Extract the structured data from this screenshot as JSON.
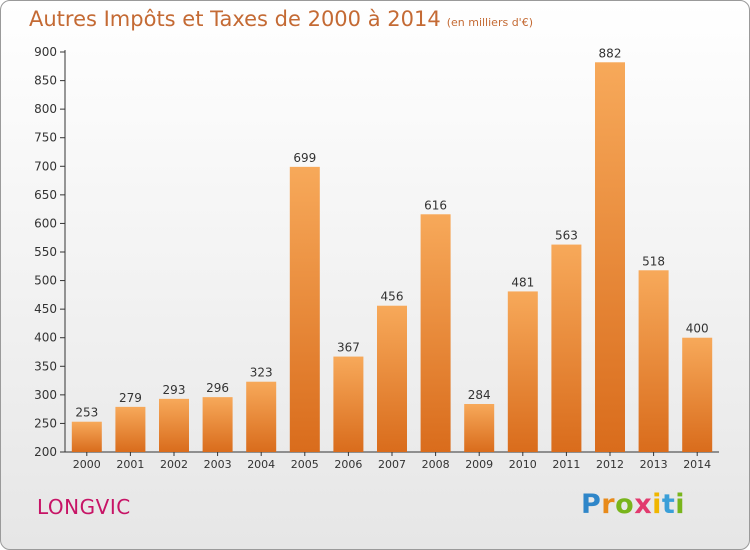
{
  "title": "Autres Impôts et Taxes de 2000 à 2014",
  "subtitle": "(en milliers d'€)",
  "location": "LONGVIC",
  "logo": {
    "text": "Proxiti",
    "letters": [
      "P",
      "r",
      "o",
      "x",
      "i",
      "t",
      "i"
    ],
    "colors": [
      "#2f86c9",
      "#e88a1a",
      "#79b51c",
      "#e23a6e",
      "#f0b600",
      "#3a9fd8",
      "#79b51c"
    ]
  },
  "colors": {
    "bar_top": "#f7a95a",
    "bar_bottom": "#d96c1c",
    "title": "#c46a34",
    "location": "#c71466"
  },
  "chart_data": {
    "type": "bar",
    "categories": [
      "2000",
      "2001",
      "2002",
      "2003",
      "2004",
      "2005",
      "2006",
      "2007",
      "2008",
      "2009",
      "2010",
      "2011",
      "2012",
      "2013",
      "2014"
    ],
    "values": [
      253,
      279,
      293,
      296,
      323,
      699,
      367,
      456,
      616,
      284,
      481,
      563,
      882,
      518,
      400
    ],
    "ylim": [
      200,
      900
    ],
    "yticks": [
      200,
      250,
      300,
      350,
      400,
      450,
      500,
      550,
      600,
      650,
      700,
      750,
      800,
      850,
      900
    ],
    "grid": false,
    "data_labels": true
  }
}
